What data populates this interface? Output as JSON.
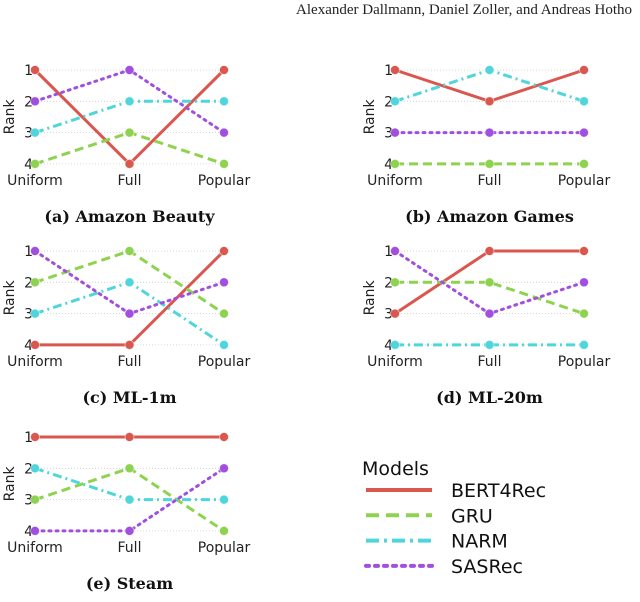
{
  "header": "Alexander Dallmann, Daniel Zoller, and Andreas Hotho",
  "legend": {
    "title": "Models",
    "placement": "bottom-right"
  },
  "series_styles": [
    {
      "name": "BERT4Rec",
      "color": "#d9574f",
      "dash": "solid"
    },
    {
      "name": "GRU",
      "color": "#8ed34f",
      "dash": "dashed"
    },
    {
      "name": "NARM",
      "color": "#4fd6dc",
      "dash": "dash-dot"
    },
    {
      "name": "SASRec",
      "color": "#a04fdf",
      "dash": "dotted"
    }
  ],
  "chart_data": [
    {
      "type": "line",
      "title": "(a) Amazon Beauty",
      "ylabel": "Rank",
      "categories": [
        "Uniform",
        "Full",
        "Popular"
      ],
      "yticks": [
        "1",
        "2",
        "3",
        "4"
      ],
      "ylim": [
        4,
        1
      ],
      "grid": true,
      "series": [
        {
          "name": "BERT4Rec",
          "values": [
            1,
            4,
            1
          ]
        },
        {
          "name": "GRU",
          "values": [
            4,
            3,
            4
          ]
        },
        {
          "name": "NARM",
          "values": [
            3,
            2,
            2
          ]
        },
        {
          "name": "SASRec",
          "values": [
            2,
            1,
            3
          ]
        }
      ]
    },
    {
      "type": "line",
      "title": "(b) Amazon Games",
      "ylabel": "Rank",
      "categories": [
        "Uniform",
        "Full",
        "Popular"
      ],
      "yticks": [
        "1",
        "2",
        "3",
        "4"
      ],
      "ylim": [
        4,
        1
      ],
      "grid": true,
      "series": [
        {
          "name": "BERT4Rec",
          "values": [
            1,
            2,
            1
          ]
        },
        {
          "name": "GRU",
          "values": [
            4,
            4,
            4
          ]
        },
        {
          "name": "NARM",
          "values": [
            2,
            1,
            2
          ]
        },
        {
          "name": "SASRec",
          "values": [
            3,
            3,
            3
          ]
        }
      ]
    },
    {
      "type": "line",
      "title": "(c) ML-1m",
      "ylabel": "Rank",
      "categories": [
        "Uniform",
        "Full",
        "Popular"
      ],
      "yticks": [
        "1",
        "2",
        "3",
        "4"
      ],
      "ylim": [
        4,
        1
      ],
      "grid": true,
      "series": [
        {
          "name": "BERT4Rec",
          "values": [
            4,
            4,
            1
          ]
        },
        {
          "name": "GRU",
          "values": [
            2,
            1,
            3
          ]
        },
        {
          "name": "NARM",
          "values": [
            3,
            2,
            4
          ]
        },
        {
          "name": "SASRec",
          "values": [
            1,
            3,
            2
          ]
        }
      ]
    },
    {
      "type": "line",
      "title": "(d) ML-20m",
      "ylabel": "Rank",
      "categories": [
        "Uniform",
        "Full",
        "Popular"
      ],
      "yticks": [
        "1",
        "2",
        "3",
        "4"
      ],
      "ylim": [
        4,
        1
      ],
      "grid": true,
      "series": [
        {
          "name": "BERT4Rec",
          "values": [
            3,
            1,
            1
          ]
        },
        {
          "name": "GRU",
          "values": [
            2,
            2,
            3
          ]
        },
        {
          "name": "NARM",
          "values": [
            4,
            4,
            4
          ]
        },
        {
          "name": "SASRec",
          "values": [
            1,
            3,
            2
          ]
        }
      ]
    },
    {
      "type": "line",
      "title": "(e) Steam",
      "ylabel": "Rank",
      "categories": [
        "Uniform",
        "Full",
        "Popular"
      ],
      "yticks": [
        "1",
        "2",
        "3",
        "4"
      ],
      "ylim": [
        4,
        1
      ],
      "grid": true,
      "series": [
        {
          "name": "BERT4Rec",
          "values": [
            1,
            1,
            1
          ]
        },
        {
          "name": "GRU",
          "values": [
            3,
            2,
            4
          ]
        },
        {
          "name": "NARM",
          "values": [
            2,
            3,
            3
          ]
        },
        {
          "name": "SASRec",
          "values": [
            4,
            4,
            2
          ]
        }
      ]
    }
  ]
}
